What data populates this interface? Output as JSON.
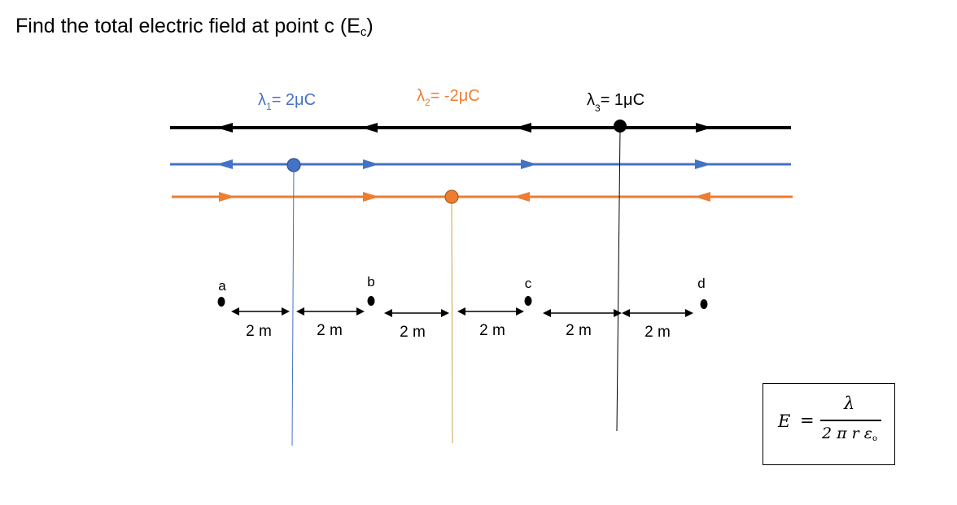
{
  "question": {
    "text": "Find the total electric field at point c (E",
    "subscript": "c",
    "close": ")"
  },
  "wires": [
    {
      "symbol": "λ",
      "index": "1",
      "value": "= 2μC",
      "color": "#4472c4"
    },
    {
      "symbol": "λ",
      "index": "2",
      "value": "= -2μC",
      "color": "#ed7d31"
    },
    {
      "symbol": "λ",
      "index": "3",
      "value": "= 1μC",
      "color": "#000000"
    }
  ],
  "points": [
    "a",
    "b",
    "c",
    "d"
  ],
  "distances": [
    "2 m",
    "2 m",
    "2 m",
    "2 m",
    "2 m",
    "2 m"
  ],
  "formula": {
    "lhs": "E",
    "equals": "=",
    "numerator": "λ",
    "denominator": "2 π r ε",
    "denominator_sub": "o"
  }
}
